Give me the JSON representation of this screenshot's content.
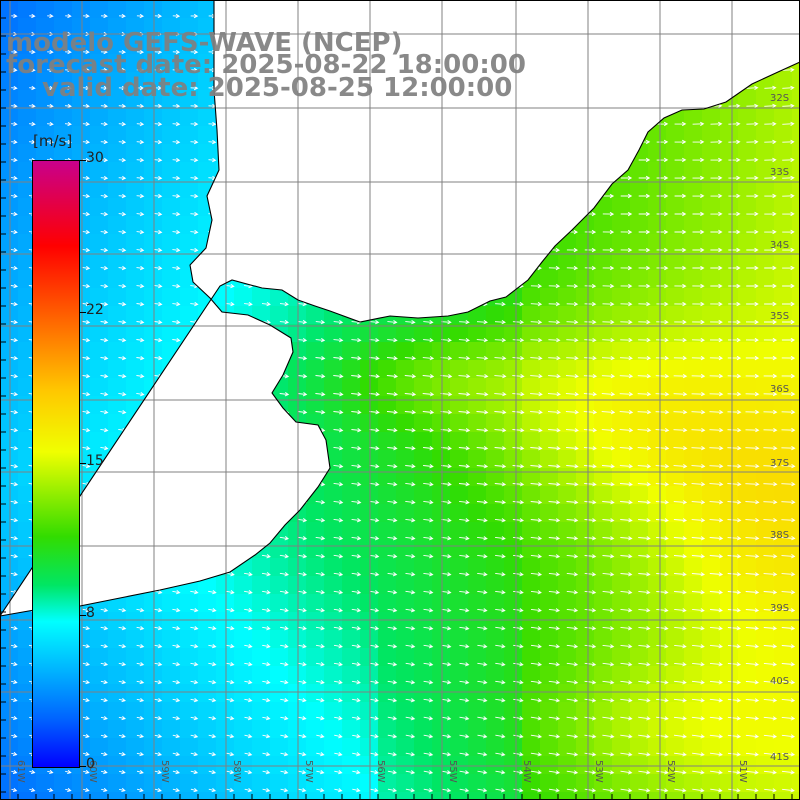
{
  "title": {
    "line1": "modelo GEFS-WAVE (NCEP)",
    "line2": "forecast date: 2025-08-22 18:00:00",
    "line3": "valid date: 2025-08-25 12:00:00"
  },
  "colorbar": {
    "unit": "[m/s]",
    "ticks": [
      "30",
      "22",
      "15",
      "8",
      "0"
    ],
    "tick_values": [
      30,
      22,
      15,
      8,
      0
    ],
    "min": 0,
    "max": 30
  },
  "map": {
    "lat_labels": [
      "32S",
      "33S",
      "34S",
      "35S",
      "36S",
      "37S",
      "38S",
      "39S",
      "40S",
      "41S"
    ],
    "lon_labels": [
      "61W",
      "60W",
      "59W",
      "58W",
      "57W",
      "56W",
      "55W",
      "54W",
      "53W",
      "52W",
      "51W"
    ],
    "wind_direction": "south-west to east (arrows pointing east / east-south-east)",
    "colors": {
      "land": "#ffffff",
      "coast": "#000000",
      "grid": "#808080",
      "arrow": "#ffffff"
    }
  }
}
